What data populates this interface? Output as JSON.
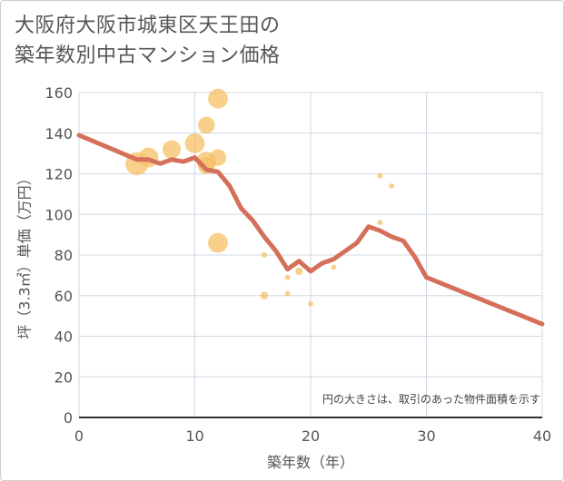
{
  "chart_data": {
    "type": "scatter+line",
    "title_lines": [
      "大阪府大阪市城東区天王田の",
      "築年数別中古マンション価格"
    ],
    "xlabel": "築年数（年）",
    "ylabel": "坪（3.3㎡）単価（万円）",
    "xlim": [
      0,
      40
    ],
    "ylim": [
      0,
      160
    ],
    "xticks": [
      0,
      10,
      20,
      30,
      40
    ],
    "yticks": [
      0,
      20,
      40,
      60,
      80,
      100,
      120,
      140,
      160
    ],
    "note": "円の大きさは、取引のあった物件面積を示す",
    "colors": {
      "bubble": "#f5c065",
      "line": "#d4705a",
      "grid": "#cfd8e3",
      "axis": "#333333"
    },
    "scatter": [
      {
        "x": 5,
        "y": 125,
        "size": 3.0
      },
      {
        "x": 6,
        "y": 128,
        "size": 2.6
      },
      {
        "x": 8,
        "y": 132,
        "size": 2.4
      },
      {
        "x": 10,
        "y": 135,
        "size": 2.6
      },
      {
        "x": 11,
        "y": 144,
        "size": 2.2
      },
      {
        "x": 11,
        "y": 126,
        "size": 2.6
      },
      {
        "x": 11,
        "y": 124,
        "size": 2.2
      },
      {
        "x": 12,
        "y": 157,
        "size": 2.6
      },
      {
        "x": 12,
        "y": 128,
        "size": 2.2
      },
      {
        "x": 12,
        "y": 86,
        "size": 2.6
      },
      {
        "x": 16,
        "y": 80,
        "size": 0.7
      },
      {
        "x": 16,
        "y": 60,
        "size": 1.0
      },
      {
        "x": 18,
        "y": 69,
        "size": 0.7
      },
      {
        "x": 18,
        "y": 61,
        "size": 0.7
      },
      {
        "x": 19,
        "y": 72,
        "size": 1.0
      },
      {
        "x": 20,
        "y": 56,
        "size": 0.7
      },
      {
        "x": 22,
        "y": 74,
        "size": 0.7
      },
      {
        "x": 26,
        "y": 119,
        "size": 0.7
      },
      {
        "x": 26,
        "y": 96,
        "size": 0.7
      },
      {
        "x": 27,
        "y": 114,
        "size": 0.7
      }
    ],
    "trend": {
      "x": [
        0,
        5,
        6,
        7,
        8,
        9,
        10,
        11,
        12,
        13,
        14,
        15,
        16,
        17,
        18,
        19,
        20,
        21,
        22,
        23,
        24,
        25,
        26,
        27,
        28,
        29,
        30,
        40
      ],
      "y": [
        139,
        127,
        127,
        125,
        127,
        126,
        128,
        122,
        121,
        114,
        103,
        97,
        89,
        82,
        73,
        77,
        72,
        76,
        78,
        82,
        86,
        94,
        92,
        89,
        87,
        79,
        69,
        46
      ]
    }
  }
}
